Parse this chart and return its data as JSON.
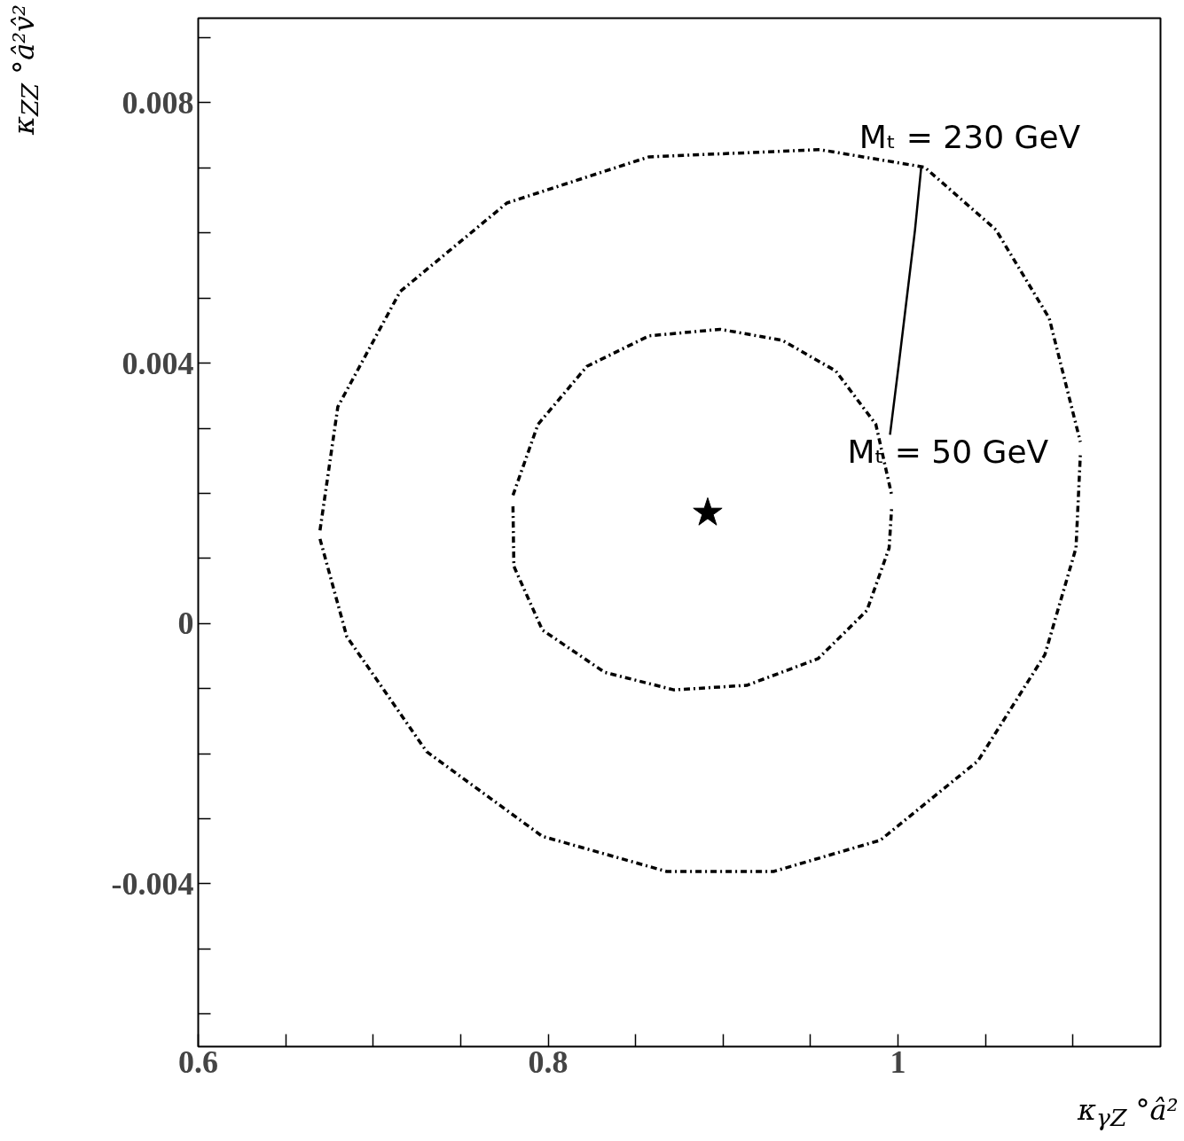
{
  "chart_data": {
    "type": "line",
    "xlabel": "κ$_{γZ}$ °â²",
    "ylabel": "κ$_{ZZ}$ °â²v̂²",
    "xlim": [
      0.6,
      1.15
    ],
    "ylim": [
      -0.0065,
      0.0093
    ],
    "xticks": [
      0.6,
      {
        "value": 0.65,
        "label": null
      },
      {
        "value": 0.7,
        "label": null
      },
      {
        "value": 0.75,
        "label": null
      },
      0.8,
      {
        "value": 0.85,
        "label": null
      },
      {
        "value": 0.9,
        "label": null
      },
      {
        "value": 0.95,
        "label": null
      },
      1,
      {
        "value": 1.05,
        "label": null
      },
      {
        "value": 1.1,
        "label": null
      }
    ],
    "yticks": [
      {
        "value": -0.006,
        "label": null
      },
      {
        "value": -0.005,
        "label": null
      },
      -0.004,
      {
        "value": -0.003,
        "label": null
      },
      {
        "value": -0.002,
        "label": null
      },
      {
        "value": -0.001,
        "label": null
      },
      0,
      {
        "value": 0.001,
        "label": null
      },
      {
        "value": 0.002,
        "label": null
      },
      {
        "value": 0.003,
        "label": null
      },
      0.004,
      {
        "value": 0.005,
        "label": null
      },
      {
        "value": 0.006,
        "label": null
      },
      {
        "value": 0.007,
        "label": null
      },
      0.008,
      {
        "value": 0.009,
        "label": null
      }
    ],
    "grid": false,
    "series": [
      {
        "line_style": "dashed",
        "color": "#000000",
        "x": [
          0.7799,
          0.7942,
          0.8221,
          0.8577,
          0.8983,
          0.9339,
          0.9644,
          0.9873,
          0.9964
        ],
        "values": [
          0.00197,
          0.00306,
          0.00395,
          0.00442,
          0.00452,
          0.00435,
          0.00388,
          0.00306,
          0.00197
        ]
      },
      {
        "line_style": "dashed",
        "color": "#000000",
        "x": [
          0.7799,
          0.7804,
          0.7967,
          0.8323,
          0.8719,
          0.9136,
          0.9543,
          0.9822,
          0.9949,
          0.9964
        ],
        "values": [
          0.0018,
          0.00088,
          -0.0001,
          -0.00075,
          -0.00102,
          -0.00095,
          -0.00054,
          0.0002,
          0.00116,
          0.0018
        ]
      },
      {
        "line_style": "dashed",
        "color": "#000000",
        "x": [
          0.6696,
          0.6798,
          0.7154,
          0.7764,
          0.8577,
          0.9553,
          1.0152,
          1.0559,
          1.0864,
          1.1042
        ],
        "values": [
          0.00143,
          0.00333,
          0.0051,
          0.00646,
          0.00717,
          0.00728,
          0.00701,
          0.00605,
          0.00469,
          0.00279
        ]
      },
      {
        "line_style": "dashed",
        "color": "#000000",
        "x": [
          0.6696,
          0.6849,
          0.7306,
          0.7967,
          0.8678,
          0.9288,
          0.9898,
          1.0457,
          1.0839,
          1.1017,
          1.1042
        ],
        "values": [
          0.0013,
          -0.0002,
          -0.00197,
          -0.00327,
          -0.00381,
          -0.00381,
          -0.00333,
          -0.00211,
          -0.00048,
          0.00116,
          0.0026
        ]
      },
      {
        "line_style": "solid",
        "color": "#000000",
        "x": [
          0.9954,
          1.0005,
          1.0097,
          1.0132
        ],
        "values": [
          0.0029,
          0.004,
          0.00605,
          0.007
        ]
      },
      {
        "type": "scatter",
        "marker": "star",
        "color": "#000000",
        "x": [
          0.8912
        ],
        "values": [
          0.0017
        ]
      }
    ],
    "annotations": [
      {
        "text": "Mₜ = 230 GeV",
        "x": 1.0132,
        "y": 0.007
      },
      {
        "text": "Mₜ = 50 GeV",
        "x": 0.9954,
        "y": 0.0029
      }
    ]
  }
}
